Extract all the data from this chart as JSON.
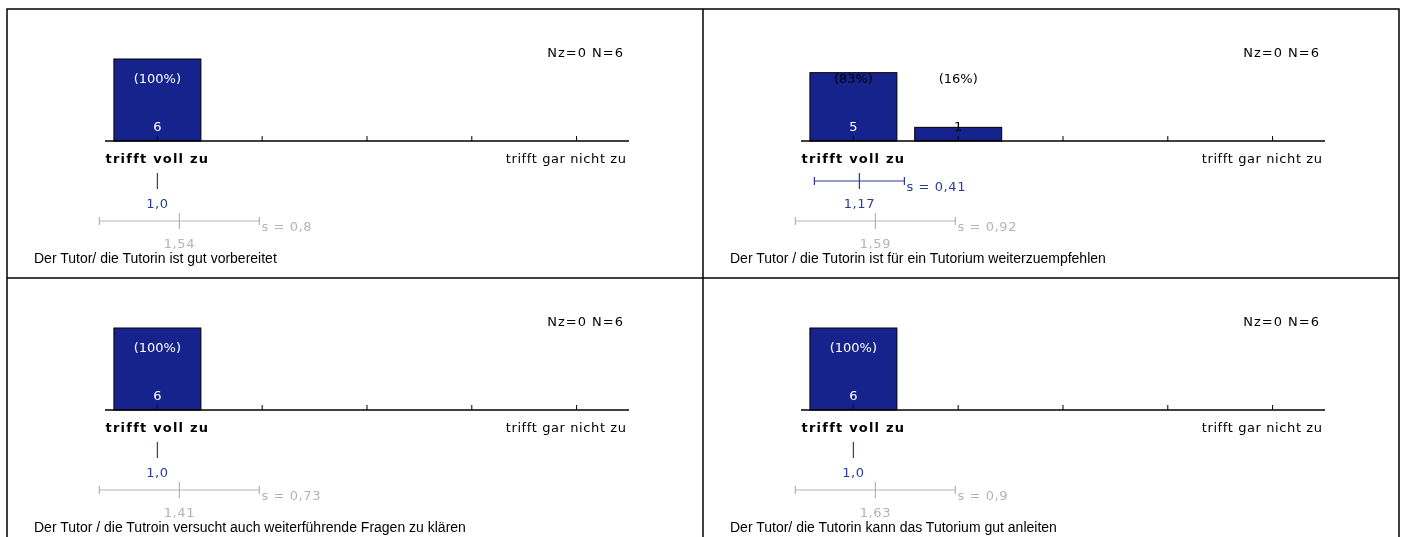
{
  "chart_data": [
    {
      "type": "bar",
      "title": "Der Tutor/ die Tutorin ist gut vorbereitet",
      "categories": [
        "trifft voll zu",
        null,
        null,
        null,
        "trifft gar nicht zu"
      ],
      "values": [
        6,
        0,
        0,
        0,
        0
      ],
      "color": "#17238c",
      "tick_labels": "x",
      "value_labels": [
        "6",
        null,
        null,
        null,
        null
      ],
      "annotations": [
        "Nz=0 N=6",
        "(100%)",
        "1,0",
        "1,54",
        "s = 0,8"
      ]
    },
    {
      "type": "bar",
      "title": "Der Tutor / die Tutorin ist für ein Tutorium weiterzuempfehlen",
      "categories": [
        "trifft voll zu",
        null,
        null,
        null,
        "trifft gar nicht zu"
      ],
      "values": [
        5,
        1,
        0,
        0,
        0
      ],
      "color": "#17238c",
      "tick_labels": "x",
      "value_labels": [
        "5",
        "1",
        null,
        null,
        null
      ],
      "annotations": [
        "Nz=0 N=6",
        "(83%)",
        "(16%)",
        "1,17",
        "s = 0,41",
        "1,59",
        "s = 0,92"
      ]
    },
    {
      "type": "bar",
      "title": "Der Tutor / die Tutroin versucht auch weiterführende Fragen zu klären",
      "categories": [
        "trifft voll zu",
        null,
        null,
        null,
        "trifft gar nicht zu"
      ],
      "values": [
        6,
        0,
        0,
        0,
        0
      ],
      "color": "#17238c",
      "tick_labels": "x",
      "value_labels": [
        "6",
        null,
        null,
        null,
        null
      ],
      "annotations": [
        "Nz=0 N=6",
        "(100%)",
        "1,0",
        "1,41",
        "s = 0,73"
      ]
    },
    {
      "type": "bar",
      "title": "Der Tutor/ die Tutorin kann das Tutorium gut anleiten",
      "categories": [
        "trifft voll zu",
        null,
        null,
        null,
        "trifft gar nicht zu"
      ],
      "values": [
        6,
        0,
        0,
        0,
        0
      ],
      "color": "#17238c",
      "tick_labels": "x",
      "value_labels": [
        "6",
        null,
        null,
        null,
        null
      ],
      "annotations": [
        "Nz=0 N=6",
        "(100%)",
        "1,0",
        "1,63",
        "s = 0,9"
      ]
    }
  ]
}
